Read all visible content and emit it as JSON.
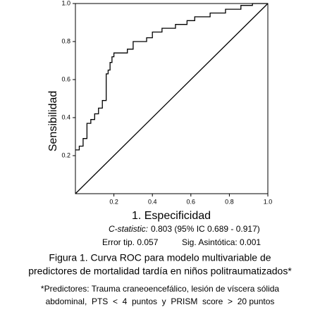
{
  "chart_data": {
    "type": "line",
    "xlabel": "1. Especificidad",
    "ylabel": "Sensibilidad",
    "xlim": [
      0,
      1
    ],
    "ylim": [
      0,
      1
    ],
    "xticks": [
      0.2,
      0.4,
      0.6,
      {
        "value": 0.8,
        "label": "0.8"
      },
      {
        "value": 1,
        "label": "1.0"
      }
    ],
    "yticks": [
      0.2,
      0.4,
      0.6,
      0.8,
      {
        "value": 1,
        "label": "1.0"
      }
    ],
    "series": [
      {
        "color": "#000000",
        "x": [
          0,
          0.02,
          0.02,
          0.04,
          0.04,
          0.06,
          0.06,
          0.08,
          0.08,
          0.1,
          0.1,
          0.12,
          0.12,
          0.14,
          0.14,
          0.16,
          0.16,
          0.17,
          0.17,
          0.18,
          0.18,
          0.19,
          0.19,
          0.2,
          0.2,
          0.27,
          0.27,
          0.3,
          0.3,
          0.37,
          0.37,
          0.4,
          0.4,
          0.45,
          0.45,
          0.52,
          0.52,
          0.58,
          0.58,
          0.62,
          0.62,
          0.7,
          0.7,
          0.78,
          0.78,
          0.86,
          0.86,
          0.92,
          0.92,
          1
        ],
        "values": [
          0.23,
          0.23,
          0.25,
          0.25,
          0.29,
          0.29,
          0.37,
          0.37,
          0.39,
          0.39,
          0.42,
          0.42,
          0.45,
          0.45,
          0.49,
          0.49,
          0.63,
          0.63,
          0.65,
          0.65,
          0.69,
          0.69,
          0.72,
          0.72,
          0.74,
          0.74,
          0.76,
          0.76,
          0.8,
          0.8,
          0.82,
          0.82,
          0.85,
          0.85,
          0.87,
          0.87,
          0.89,
          0.89,
          0.91,
          0.91,
          0.93,
          0.93,
          0.95,
          0.95,
          0.97,
          0.97,
          0.99,
          0.99,
          1,
          1
        ]
      },
      {
        "color": "#000000",
        "x": [
          0,
          1
        ],
        "values": [
          0,
          1
        ]
      }
    ],
    "stats_label": "C-statistic:",
    "stats_value": "0.803 (95% IC 0.689 - 0.917)",
    "stats_error": "Error tip. 0.057",
    "stats_sig": "Sig. Asintótica: 0.001",
    "caption": [
      "Figura 1. Curva ROC para modelo multivariable de",
      "predictores de mortalidad tardía en niños politraumatizados*"
    ],
    "footnote": [
      "*Predictores: Trauma craneoencefálico, lesión de víscera sólida",
      "abdominal,  PTS  <  4  puntos  y  PRISM  score  >  20 puntos"
    ]
  }
}
